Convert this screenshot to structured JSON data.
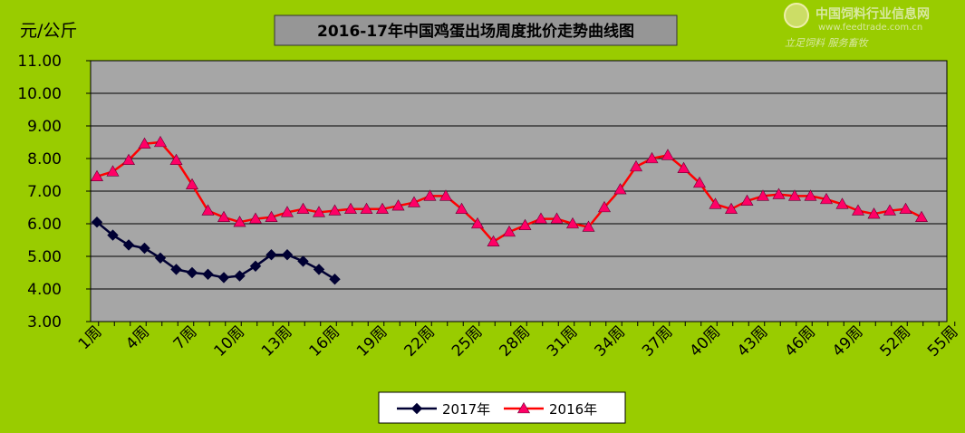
{
  "watermark": {
    "title": "中国饲料行业信息网",
    "url": "www.feedtrade.com.cn",
    "slogan": "立足饲料 服务畜牧"
  },
  "chart_data": {
    "type": "line",
    "title": "2016-17年中国鸡蛋出场周度批价走势曲线图",
    "ylabel": "元/公斤",
    "xlabel": "",
    "ylim": [
      3.0,
      11.0
    ],
    "xlim": [
      1,
      55
    ],
    "y_ticks": [
      "3.00",
      "4.00",
      "5.00",
      "6.00",
      "7.00",
      "8.00",
      "9.00",
      "10.00",
      "11.00"
    ],
    "x_ticks": [
      "1周",
      "4周",
      "7周",
      "10周",
      "13周",
      "16周",
      "19周",
      "22周",
      "25周",
      "28周",
      "31周",
      "34周",
      "37周",
      "40周",
      "43周",
      "46周",
      "49周",
      "52周",
      "55周"
    ],
    "grid": true,
    "legend_position": "bottom",
    "series": [
      {
        "name": "2017年",
        "color": "#000033",
        "marker": "diamond",
        "x": [
          1,
          2,
          3,
          4,
          5,
          6,
          7,
          8,
          9,
          10,
          11,
          12,
          13,
          14,
          15,
          16
        ],
        "values": [
          6.05,
          5.65,
          5.35,
          5.25,
          4.95,
          4.6,
          4.5,
          4.45,
          4.35,
          4.4,
          4.7,
          5.05,
          5.05,
          4.85,
          4.6,
          4.3
        ]
      },
      {
        "name": "2016年",
        "color": "#ff0000",
        "marker": "triangle",
        "marker_color": "#ff0066",
        "x": [
          1,
          2,
          3,
          4,
          5,
          6,
          7,
          8,
          9,
          10,
          11,
          12,
          13,
          14,
          15,
          16,
          17,
          18,
          19,
          20,
          21,
          22,
          23,
          24,
          25,
          26,
          27,
          28,
          29,
          30,
          31,
          32,
          33,
          34,
          35,
          36,
          37,
          38,
          39,
          40,
          41,
          42,
          43,
          44,
          45,
          46,
          47,
          48,
          49,
          50,
          51,
          52,
          53
        ],
        "values": [
          7.45,
          7.6,
          7.95,
          8.45,
          8.5,
          7.95,
          7.2,
          6.4,
          6.2,
          6.05,
          6.15,
          6.2,
          6.35,
          6.45,
          6.35,
          6.4,
          6.45,
          6.45,
          6.45,
          6.55,
          6.65,
          6.85,
          6.85,
          6.45,
          6.0,
          5.45,
          5.75,
          5.95,
          6.15,
          6.15,
          6.0,
          5.9,
          6.5,
          7.05,
          7.75,
          8.0,
          8.1,
          7.7,
          7.25,
          6.6,
          6.45,
          6.7,
          6.85,
          6.9,
          6.85,
          6.85,
          6.75,
          6.6,
          6.4,
          6.3,
          6.4,
          6.45,
          6.2
        ]
      }
    ]
  }
}
